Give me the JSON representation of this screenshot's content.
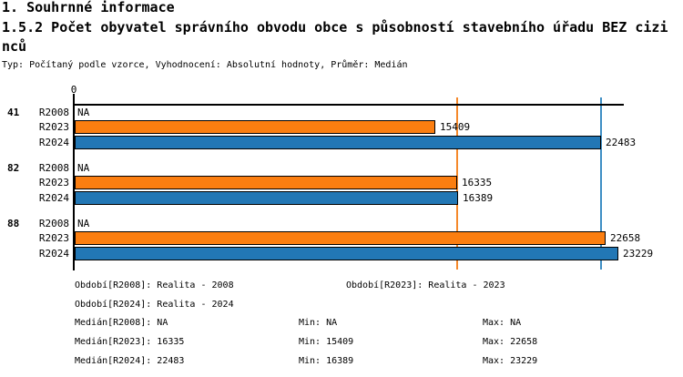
{
  "page": {
    "section_title": "1. Souhrnné informace"
  },
  "chart_data": {
    "type": "bar",
    "orientation": "horizontal",
    "title": "1.5.2 Počet obyvatel správního obvodu obce s působností stavebního úřadu BEZ cizinců",
    "subtitle": "Typ: Počítaný podle vzorce, Vyhodnocení: Absolutní hodnoty, Průměr: Medián",
    "categories": [
      "41",
      "82",
      "88"
    ],
    "series": [
      {
        "name": "R2008",
        "color": null,
        "na_text": "NA",
        "values": [
          null,
          null,
          null
        ],
        "median": null
      },
      {
        "name": "R2023",
        "color": "#FB7E10",
        "line_color": "#F5892B",
        "values": [
          15409,
          16335,
          22658
        ],
        "median": 16335
      },
      {
        "name": "R2024",
        "color": "#2277B5",
        "line_color": "#3E8EC4",
        "values": [
          22483,
          16389,
          23229
        ],
        "median": 22483
      }
    ],
    "xlim": [
      0,
      23450
    ],
    "x_ticks": [
      {
        "value": 0,
        "label": "0"
      }
    ],
    "grid": false,
    "legend_position": "bottom",
    "legend": {
      "period_r2008": "Období[R2008]: Realita - 2008",
      "period_r2023": "Období[R2023]: Realita - 2023",
      "period_r2024": "Období[R2024]: Realita - 2024",
      "stats": [
        {
          "median": "Medián[R2008]: NA",
          "min": "Min: NA",
          "max": "Max: NA"
        },
        {
          "median": "Medián[R2023]: 16335",
          "min": "Min: 15409",
          "max": "Max: 22658"
        },
        {
          "median": "Medián[R2024]: 22483",
          "min": "Min: 16389",
          "max": "Max: 23229"
        }
      ]
    }
  }
}
